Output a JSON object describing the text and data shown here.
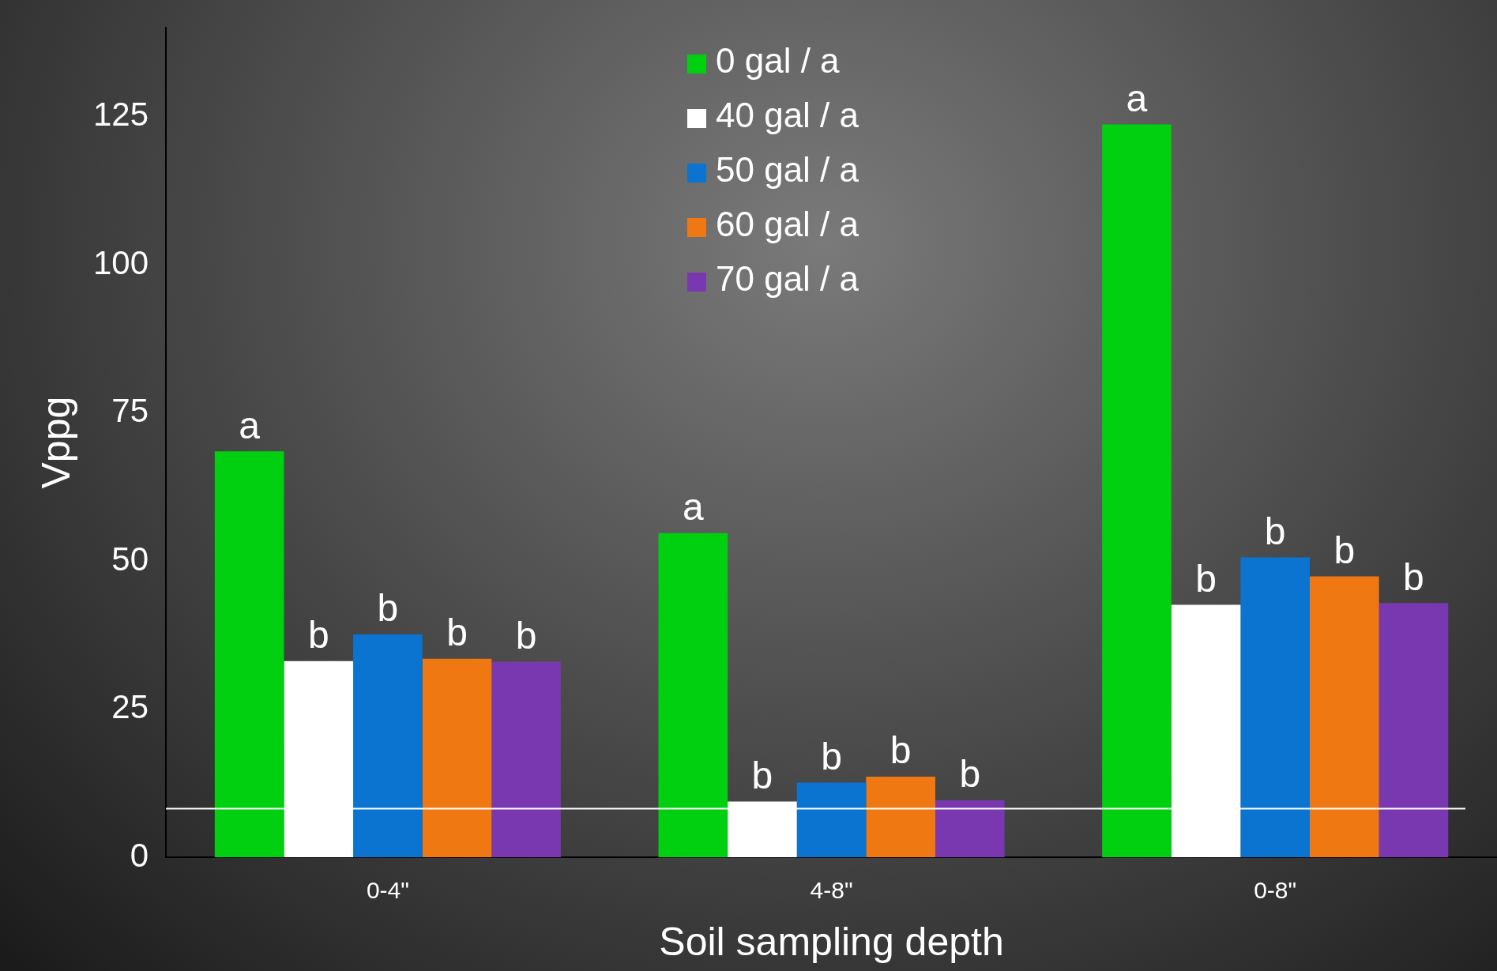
{
  "chart_data": {
    "type": "bar",
    "xlabel": "Soil sampling depth",
    "ylabel": "Vppg",
    "categories": [
      "0-4\"",
      "4-8\"",
      "0-8\""
    ],
    "series": [
      {
        "name": "0 gal / a",
        "color": "#00d010",
        "values": [
          68.5,
          54.7,
          123.7
        ]
      },
      {
        "name": "40 gal / a",
        "color": "#ffffff",
        "values": [
          33.1,
          9.4,
          42.6
        ]
      },
      {
        "name": "50 gal / a",
        "color": "#0a74d0",
        "values": [
          37.6,
          12.6,
          50.6
        ]
      },
      {
        "name": "60 gal / a",
        "color": "#f07812",
        "values": [
          33.5,
          13.6,
          47.4
        ]
      },
      {
        "name": "70 gal / a",
        "color": "#7a38b0",
        "values": [
          33.0,
          9.6,
          42.9
        ]
      }
    ],
    "ylim": [
      0,
      140
    ],
    "yticks": [
      0,
      25,
      50,
      75,
      100,
      125
    ],
    "grid": false,
    "legend": "top",
    "ref_lines": [
      {
        "axis": "y",
        "value": 8.2,
        "color": "#ffffff"
      }
    ],
    "annotations": [
      "a",
      "b",
      "b",
      "b",
      "b",
      "a",
      "b",
      "b",
      "b",
      "b",
      "a",
      "b",
      "b",
      "b",
      "b"
    ]
  }
}
